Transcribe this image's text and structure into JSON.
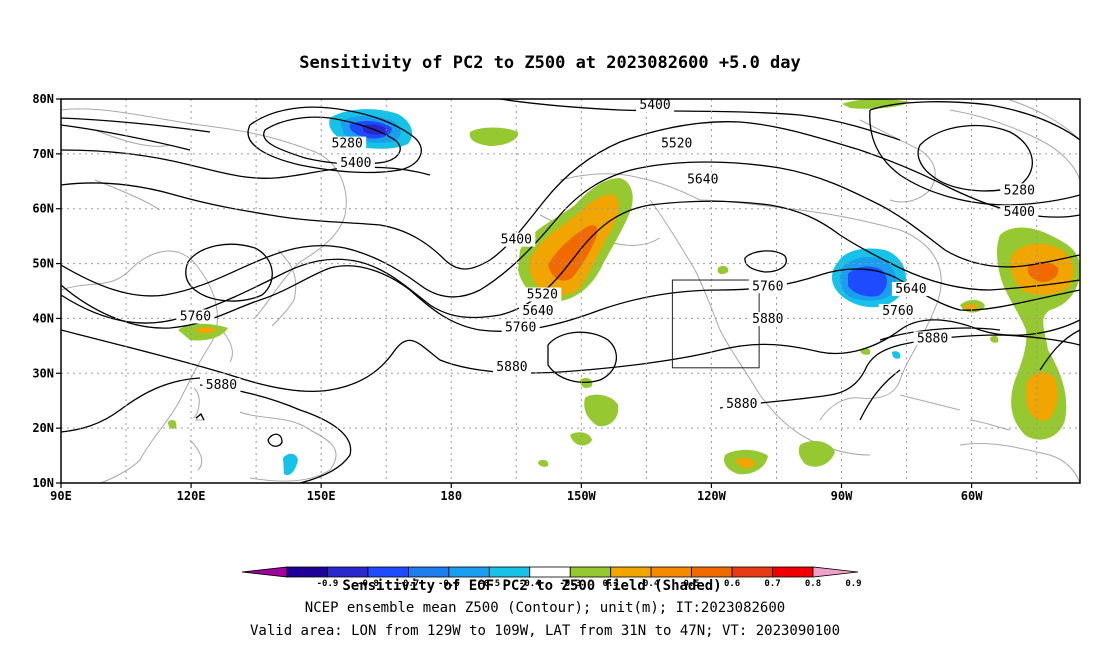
{
  "title": "Sensitivity of PC2 to Z500 at 2023082600 +5.0 day",
  "lat_ticks": [
    {
      "label": "80N",
      "lat": 80
    },
    {
      "label": "70N",
      "lat": 70
    },
    {
      "label": "60N",
      "lat": 60
    },
    {
      "label": "50N",
      "lat": 50
    },
    {
      "label": "40N",
      "lat": 40
    },
    {
      "label": "30N",
      "lat": 30
    },
    {
      "label": "20N",
      "lat": 20
    },
    {
      "label": "10N",
      "lat": 10
    }
  ],
  "lon_ticks": [
    {
      "label": "90E",
      "lon": 90
    },
    {
      "label": "120E",
      "lon": 120
    },
    {
      "label": "150E",
      "lon": 150
    },
    {
      "label": "180",
      "lon": 180
    },
    {
      "label": "150W",
      "lon": 210
    },
    {
      "label": "120W",
      "lon": 240
    },
    {
      "label": "90W",
      "lon": 270
    },
    {
      "label": "60W",
      "lon": 300
    }
  ],
  "map_extent": {
    "lon_min": 90,
    "lon_max": 325,
    "lat_min": 10,
    "lat_max": 80
  },
  "contour_labels": [
    {
      "text": "5400",
      "lon": 195,
      "lat": 54
    },
    {
      "text": "5520",
      "lon": 201,
      "lat": 44
    },
    {
      "text": "5640",
      "lon": 200,
      "lat": 41
    },
    {
      "text": "5760",
      "lon": 196,
      "lat": 38
    },
    {
      "text": "5880",
      "lon": 194,
      "lat": 30.8
    },
    {
      "text": "5280",
      "lon": 156,
      "lat": 71.5
    },
    {
      "text": "5400",
      "lon": 158,
      "lat": 68
    },
    {
      "text": "5400",
      "lon": 227,
      "lat": 78.5
    },
    {
      "text": "5520",
      "lon": 232,
      "lat": 71.5
    },
    {
      "text": "5640",
      "lon": 238,
      "lat": 65
    },
    {
      "text": "5280",
      "lon": 311,
      "lat": 63
    },
    {
      "text": "5400",
      "lon": 311,
      "lat": 59
    },
    {
      "text": "5760",
      "lon": 253,
      "lat": 45.5
    },
    {
      "text": "5880",
      "lon": 253,
      "lat": 39.5
    },
    {
      "text": "5640",
      "lon": 286,
      "lat": 45
    },
    {
      "text": "5760",
      "lon": 283,
      "lat": 41
    },
    {
      "text": "5880",
      "lon": 291,
      "lat": 36
    },
    {
      "text": "5760",
      "lon": 121,
      "lat": 40
    },
    {
      "text": "5880",
      "lon": 127,
      "lat": 27.5
    },
    {
      "text": "5880",
      "lon": 247,
      "lat": 24
    }
  ],
  "colorbar": {
    "ticks": [
      "-0.9",
      "-0.8",
      "-0.7",
      "-0.6",
      "-0.5",
      "-0.4",
      "-0.3",
      "0.3",
      "0.4",
      "0.5",
      "0.6",
      "0.7",
      "0.8",
      "0.9"
    ],
    "colors": [
      "#a0009e",
      "#1e0096",
      "#2828cc",
      "#1f4bff",
      "#1e7ef0",
      "#199ef0",
      "#16c2e8",
      "#ffffff",
      "#96c832",
      "#f0a500",
      "#f58a00",
      "#f06a00",
      "#e83a14",
      "#f00000",
      "#f0a0c8"
    ]
  },
  "caption": [
    "Sensitivity of EOF PC2 to Z500 field (Shaded)",
    "NCEP ensemble mean Z500 (Contour); unit(m); IT:2023082600",
    "Valid area: LON from 129W to 109W, LAT from 31N to 47N; VT: 2023090100"
  ],
  "valid_area": {
    "lon_min": 231,
    "lon_max": 251,
    "lat_min": 31,
    "lat_max": 47
  }
}
